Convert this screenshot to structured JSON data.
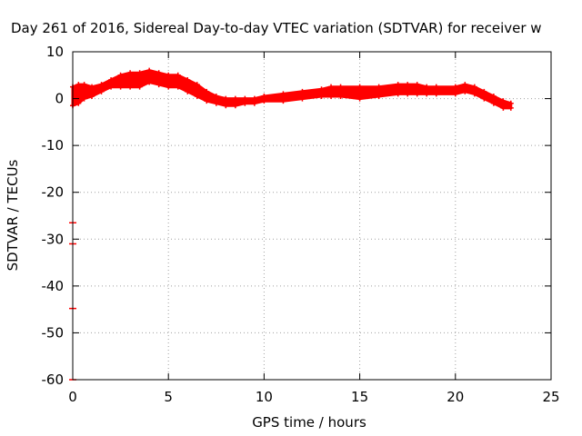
{
  "chart_data": {
    "type": "scatter",
    "title": "Day 261 of 2016, Sidereal Day-to-day VTEC variation (SDTVAR) for receiver w",
    "xlabel": "GPS time / hours",
    "ylabel": "SDTVAR / TECUs",
    "xlim": [
      0,
      25
    ],
    "ylim": [
      -60,
      10
    ],
    "xticks": [
      0,
      5,
      10,
      15,
      20,
      25
    ],
    "yticks": [
      10,
      0,
      -10,
      -20,
      -30,
      -40,
      -50,
      -60
    ],
    "grid": true,
    "series_color": "#ff0000",
    "series": [
      {
        "name": "SDTVAR",
        "band_upper": [
          [
            0.0,
            2.5
          ],
          [
            0.3,
            3.0
          ],
          [
            0.6,
            3.0
          ],
          [
            1.0,
            2.5
          ],
          [
            1.5,
            3.0
          ],
          [
            2.0,
            4.0
          ],
          [
            2.5,
            5.0
          ],
          [
            3.0,
            5.5
          ],
          [
            3.5,
            5.5
          ],
          [
            4.0,
            6.0
          ],
          [
            4.5,
            5.5
          ],
          [
            5.0,
            5.0
          ],
          [
            5.5,
            5.0
          ],
          [
            6.0,
            4.0
          ],
          [
            6.5,
            3.0
          ],
          [
            7.0,
            1.5
          ],
          [
            7.5,
            0.5
          ],
          [
            8.0,
            0.0
          ],
          [
            8.5,
            0.0
          ],
          [
            9.0,
            0.0
          ],
          [
            9.5,
            0.0
          ],
          [
            10.0,
            0.5
          ],
          [
            11.0,
            1.0
          ],
          [
            12.0,
            1.5
          ],
          [
            13.0,
            2.0
          ],
          [
            13.5,
            2.5
          ],
          [
            14.0,
            2.5
          ],
          [
            15.0,
            2.5
          ],
          [
            16.0,
            2.5
          ],
          [
            17.0,
            3.0
          ],
          [
            17.5,
            3.0
          ],
          [
            18.0,
            3.0
          ],
          [
            18.5,
            2.5
          ],
          [
            19.0,
            2.5
          ],
          [
            20.0,
            2.5
          ],
          [
            20.5,
            3.0
          ],
          [
            21.0,
            2.5
          ],
          [
            21.5,
            1.5
          ],
          [
            22.0,
            0.5
          ],
          [
            22.5,
            -0.5
          ],
          [
            22.9,
            -1.0
          ]
        ],
        "band_lower": [
          [
            0.0,
            -1.5
          ],
          [
            0.3,
            -1.0
          ],
          [
            0.6,
            0.0
          ],
          [
            1.0,
            0.5
          ],
          [
            1.5,
            1.5
          ],
          [
            2.0,
            2.5
          ],
          [
            2.5,
            2.5
          ],
          [
            3.0,
            2.5
          ],
          [
            3.5,
            2.5
          ],
          [
            4.0,
            3.5
          ],
          [
            4.5,
            3.0
          ],
          [
            5.0,
            2.5
          ],
          [
            5.5,
            2.5
          ],
          [
            6.0,
            1.5
          ],
          [
            6.5,
            0.5
          ],
          [
            7.0,
            -0.5
          ],
          [
            7.5,
            -1.0
          ],
          [
            8.0,
            -1.5
          ],
          [
            8.5,
            -1.5
          ],
          [
            9.0,
            -1.0
          ],
          [
            9.5,
            -1.0
          ],
          [
            10.0,
            -0.5
          ],
          [
            11.0,
            -0.5
          ],
          [
            12.0,
            0.0
          ],
          [
            13.0,
            0.5
          ],
          [
            13.5,
            0.5
          ],
          [
            14.0,
            0.5
          ],
          [
            15.0,
            0.0
          ],
          [
            16.0,
            0.5
          ],
          [
            17.0,
            1.0
          ],
          [
            17.5,
            1.0
          ],
          [
            18.0,
            1.0
          ],
          [
            18.5,
            1.0
          ],
          [
            19.0,
            1.0
          ],
          [
            20.0,
            1.0
          ],
          [
            20.5,
            1.5
          ],
          [
            21.0,
            1.0
          ],
          [
            21.5,
            0.0
          ],
          [
            22.0,
            -1.0
          ],
          [
            22.5,
            -2.0
          ],
          [
            22.9,
            -2.0
          ]
        ],
        "outliers": [
          [
            0.0,
            -26.5
          ],
          [
            0.0,
            -31.0
          ],
          [
            0.0,
            -44.8
          ],
          [
            0.0,
            -60.0
          ]
        ]
      }
    ]
  }
}
